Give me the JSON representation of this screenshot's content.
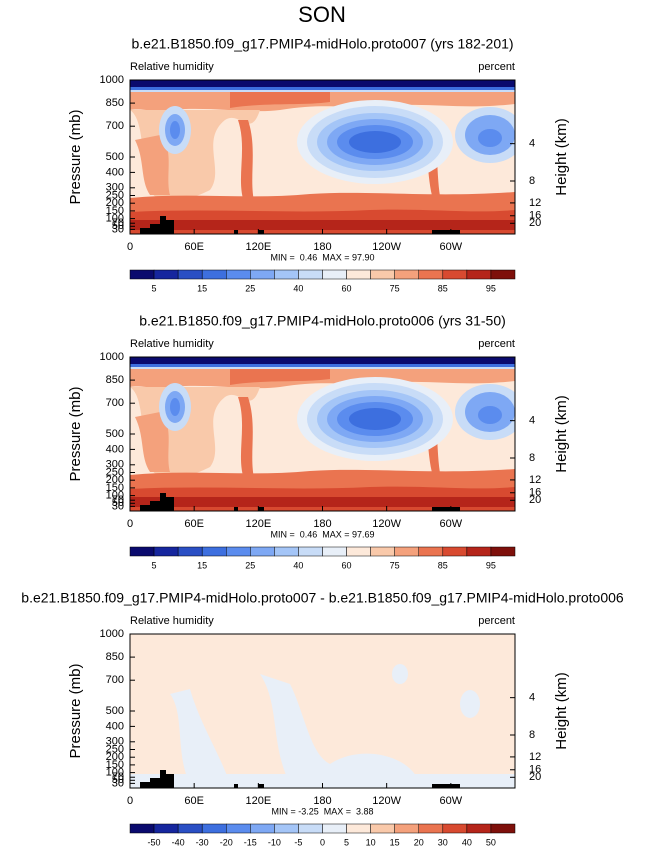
{
  "title": "SON",
  "chart_data": [
    {
      "type": "contour",
      "title": "b.e21.B1850.f09_g17.PMIP4-midHolo.proto007 (yrs 182-201)",
      "left_label": "Relative humidity",
      "right_label": "percent",
      "y_label": "Pressure (mb)",
      "y2_label": "Height (km)",
      "xlim": [
        0,
        360
      ],
      "xticks": [
        0,
        {
          "value": 60,
          "label": "60E"
        },
        {
          "value": 120,
          "label": "120E"
        },
        180,
        {
          "value": 240,
          "label": "120W"
        },
        {
          "value": 300,
          "label": "60W"
        }
      ],
      "ylim": [
        1000,
        0
      ],
      "yticks": [
        30,
        50,
        70,
        100,
        150,
        200,
        250,
        300,
        400,
        500,
        700,
        850,
        1000
      ],
      "y2ticks": [
        4,
        8,
        12,
        16,
        20
      ],
      "stats": "MIN =  0.46  MAX = 97.90",
      "colorbar": {
        "labels": [
          5,
          15,
          25,
          40,
          60,
          75,
          85,
          95
        ],
        "colors": [
          "#0a0a6e",
          "#16269e",
          "#2a4fc4",
          "#3d6fdf",
          "#5b8cee",
          "#7ea8f4",
          "#a4c5f7",
          "#c8dcf7",
          "#e8eff8",
          "#fde9da",
          "#f9c9aa",
          "#f4a17c",
          "#ea7450",
          "#d84a30",
          "#b5251a",
          "#7e100b"
        ]
      }
    },
    {
      "type": "contour",
      "title": "b.e21.B1850.f09_g17.PMIP4-midHolo.proto006 (yrs 31-50)",
      "left_label": "Relative humidity",
      "right_label": "percent",
      "y_label": "Pressure (mb)",
      "y2_label": "Height (km)",
      "xlim": [
        0,
        360
      ],
      "xticks": [
        0,
        {
          "value": 60,
          "label": "60E"
        },
        {
          "value": 120,
          "label": "120E"
        },
        180,
        {
          "value": 240,
          "label": "120W"
        },
        {
          "value": 300,
          "label": "60W"
        }
      ],
      "ylim": [
        1000,
        0
      ],
      "yticks": [
        30,
        50,
        70,
        100,
        150,
        200,
        250,
        300,
        400,
        500,
        700,
        850,
        1000
      ],
      "y2ticks": [
        4,
        8,
        12,
        16,
        20
      ],
      "stats": "MIN =  0.46  MAX = 97.69",
      "colorbar": {
        "labels": [
          5,
          15,
          25,
          40,
          60,
          75,
          85,
          95
        ],
        "colors": [
          "#0a0a6e",
          "#16269e",
          "#2a4fc4",
          "#3d6fdf",
          "#5b8cee",
          "#7ea8f4",
          "#a4c5f7",
          "#c8dcf7",
          "#e8eff8",
          "#fde9da",
          "#f9c9aa",
          "#f4a17c",
          "#ea7450",
          "#d84a30",
          "#b5251a",
          "#7e100b"
        ]
      }
    },
    {
      "type": "contour",
      "title": "b.e21.B1850.f09_g17.PMIP4-midHolo.proto007 - b.e21.B1850.f09_g17.PMIP4-midHolo.proto006",
      "left_label": "Relative humidity",
      "right_label": "percent",
      "y_label": "Pressure (mb)",
      "y2_label": "Height (km)",
      "xlim": [
        0,
        360
      ],
      "xticks": [
        0,
        {
          "value": 60,
          "label": "60E"
        },
        {
          "value": 120,
          "label": "120E"
        },
        180,
        {
          "value": 240,
          "label": "120W"
        },
        {
          "value": 300,
          "label": "60W"
        }
      ],
      "ylim": [
        1000,
        0
      ],
      "yticks": [
        30,
        50,
        70,
        100,
        150,
        200,
        250,
        300,
        400,
        500,
        700,
        850,
        1000
      ],
      "y2ticks": [
        4,
        8,
        12,
        16,
        20
      ],
      "stats": "MIN = -3.25  MAX =  3.88",
      "colorbar": {
        "labels": [
          -50,
          -40,
          -30,
          -20,
          -15,
          -10,
          -5,
          0,
          5,
          10,
          15,
          20,
          30,
          40,
          50
        ],
        "colors": [
          "#0a0a6e",
          "#16269e",
          "#2a4fc4",
          "#3d6fdf",
          "#5b8cee",
          "#7ea8f4",
          "#a4c5f7",
          "#c8dcf7",
          "#e8eff8",
          "#fde9da",
          "#f9c9aa",
          "#f4a17c",
          "#ea7450",
          "#d84a30",
          "#b5251a",
          "#7e100b"
        ]
      }
    }
  ]
}
